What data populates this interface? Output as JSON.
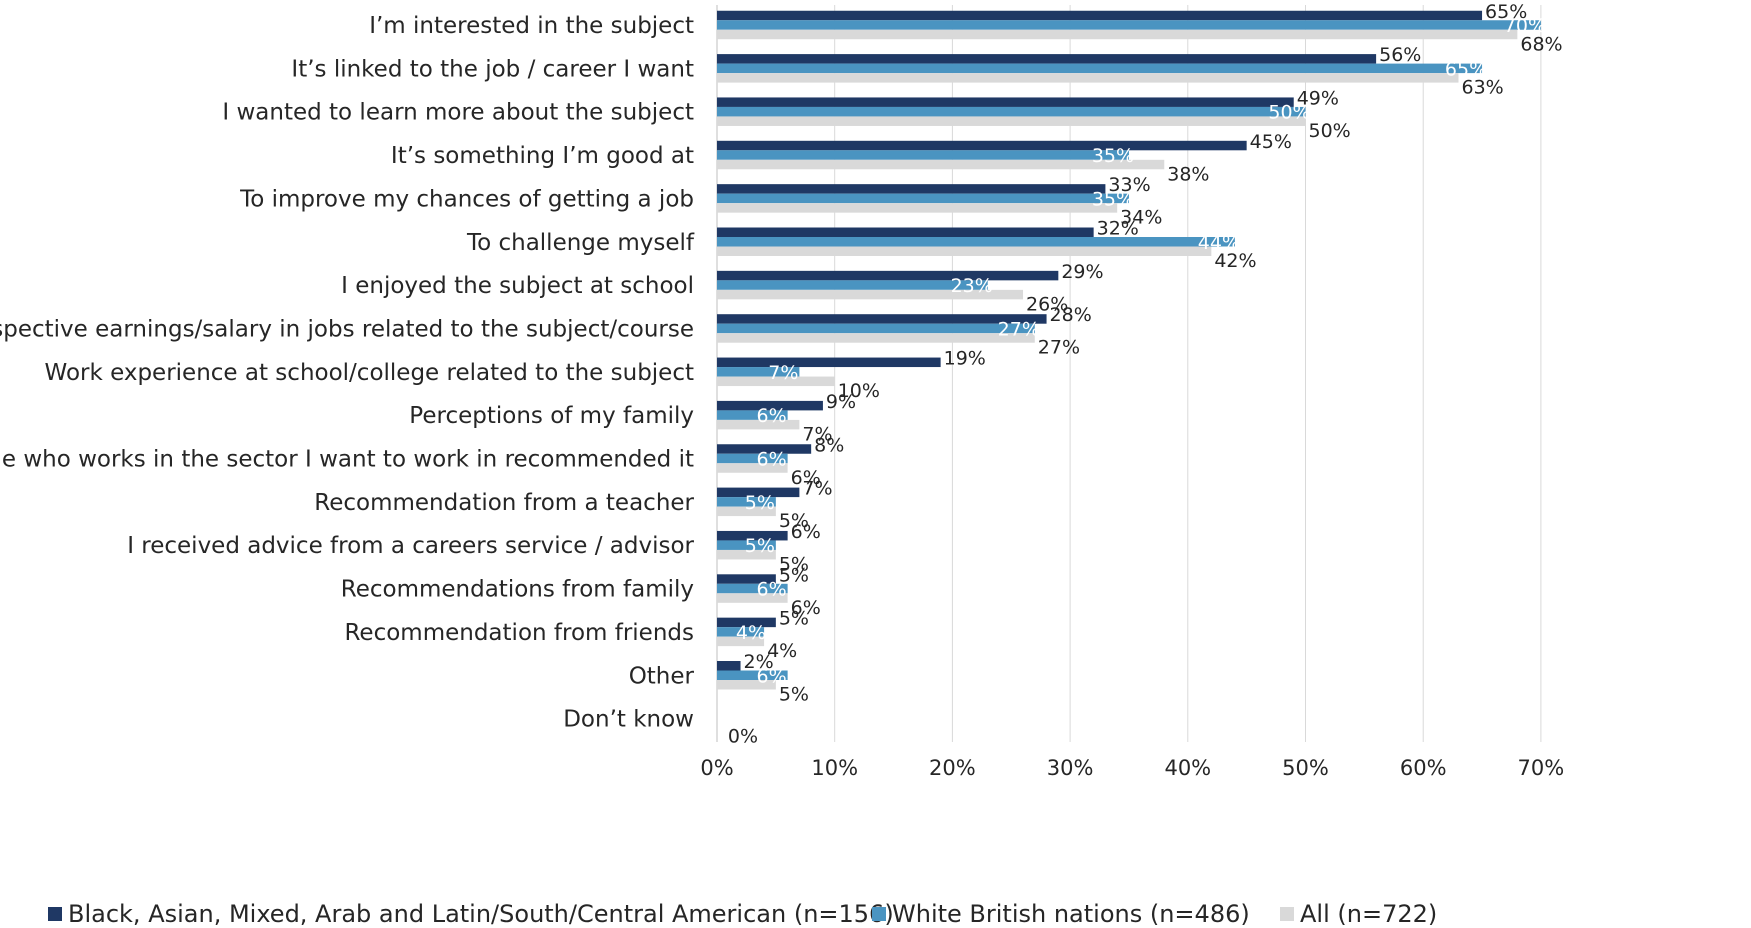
{
  "chart_data": {
    "type": "bar",
    "orientation": "horizontal",
    "categories": [
      "I’m interested in the subject",
      "It’s linked to the job / career I want",
      "I wanted to learn more about the subject",
      "It’s something I’m good at",
      "To improve my chances of getting a job",
      "To challenge myself",
      "I enjoyed the subject at school",
      "Prospective earnings/salary in jobs related to the subject/course",
      "Work experience at school/college related to the subject",
      "Perceptions of my family",
      "Someone who works in the sector I want to work in recommended it",
      "Recommendation from a teacher",
      "I received advice from a careers service / advisor",
      "Recommendations from family",
      "Recommendation from friends",
      "Other",
      "Don’t know"
    ],
    "series": [
      {
        "name": "Black, Asian, Mixed, Arab and Latin/South/Central American (n=156)",
        "color": "#1f3864",
        "values": [
          65,
          56,
          49,
          45,
          33,
          32,
          29,
          28,
          19,
          9,
          8,
          7,
          6,
          5,
          5,
          2,
          0
        ],
        "labels": [
          "65%",
          "56%",
          "49%",
          "45%",
          "33%",
          "32%",
          "29%",
          "28%",
          "19%",
          "9%",
          "8%",
          "7%",
          "6%",
          "5%",
          "5%",
          "2%",
          ""
        ]
      },
      {
        "name": "White British nations (n=486)",
        "color": "#4a94c1",
        "values": [
          70,
          65,
          50,
          35,
          35,
          44,
          23,
          27,
          7,
          6,
          6,
          5,
          5,
          6,
          4,
          6,
          0
        ],
        "labels": [
          "70%",
          "65%",
          "50%",
          "35%",
          "35%",
          "44%",
          "23%",
          "27%",
          "7%",
          "6%",
          "6%",
          "5%",
          "5%",
          "6%",
          "4%",
          "6%",
          "0%"
        ]
      },
      {
        "name": "All (n=722)",
        "color": "#d9d9d9",
        "values": [
          68,
          63,
          50,
          38,
          34,
          42,
          26,
          27,
          10,
          7,
          6,
          5,
          5,
          6,
          4,
          5,
          0
        ],
        "labels": [
          "68%",
          "63%",
          "50%",
          "38%",
          "34%",
          "42%",
          "26%",
          "27%",
          "10%",
          "7%",
          "6%",
          "5%",
          "5%",
          "6%",
          "4%",
          "5%",
          ""
        ]
      }
    ],
    "x_ticks": [
      "0%",
      "10%",
      "20%",
      "30%",
      "40%",
      "50%",
      "60%",
      "70%"
    ],
    "xlim": [
      0,
      70
    ],
    "title": "",
    "xlabel": "",
    "ylabel": "",
    "grid": "vertical",
    "legend_position": "bottom"
  }
}
